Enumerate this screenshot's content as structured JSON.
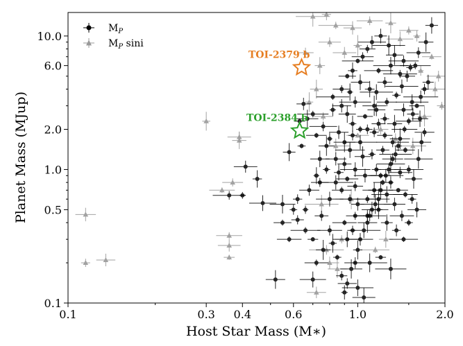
{
  "chart_data": {
    "type": "scatter",
    "title": "",
    "xlabel": "Host Star Mass (M∗)",
    "ylabel": "Planet Mass (MJup)",
    "xscale": "log",
    "yscale": "log",
    "xlim": [
      0.1,
      2.0
    ],
    "ylim": [
      0.1,
      15
    ],
    "x_ticks": [
      0.1,
      0.3,
      0.4,
      0.6,
      1.0,
      2.0
    ],
    "x_tick_labels": [
      "0.1",
      "0.3",
      "0.4",
      "0.6",
      "1.0",
      "2.0"
    ],
    "y_ticks": [
      0.1,
      0.5,
      1.0,
      2.0,
      6.0,
      10.0
    ],
    "y_tick_labels": [
      "0.1",
      "0.5",
      "1.0",
      "2.0",
      "6.0",
      "10.0"
    ],
    "grid": false,
    "legend_position": "top-left",
    "legend": [
      {
        "label": "M",
        "sub": "P",
        "suffix": "",
        "marker": "circle",
        "color": "#000000"
      },
      {
        "label": "M",
        "sub": "P",
        "suffix": " sini",
        "marker": "triangle",
        "color": "#999999"
      }
    ],
    "series": [
      {
        "name": "MP",
        "marker": "circle",
        "color": "#000000",
        "points": [
          [
            0.52,
            0.15
          ],
          [
            0.41,
            1.05
          ],
          [
            0.45,
            0.85
          ],
          [
            0.36,
            0.64
          ],
          [
            0.4,
            0.64
          ],
          [
            0.47,
            0.56
          ],
          [
            0.55,
            0.55
          ],
          [
            0.58,
            1.35
          ],
          [
            0.63,
            2.3
          ],
          [
            0.64,
            1.5
          ],
          [
            0.67,
            2.4
          ],
          [
            0.7,
            2.6
          ],
          [
            0.72,
            1.8
          ],
          [
            0.65,
            3.1
          ],
          [
            0.6,
            0.5
          ],
          [
            0.62,
            0.42
          ],
          [
            0.66,
            0.35
          ],
          [
            0.7,
            0.3
          ],
          [
            0.58,
            0.3
          ],
          [
            0.55,
            0.4
          ],
          [
            0.68,
            0.7
          ],
          [
            0.72,
            0.9
          ],
          [
            0.74,
            1.2
          ],
          [
            0.78,
            1.5
          ],
          [
            0.8,
            0.6
          ],
          [
            0.75,
            0.45
          ],
          [
            0.82,
            0.28
          ],
          [
            0.85,
            0.22
          ],
          [
            0.88,
            0.16
          ],
          [
            0.9,
            0.12
          ],
          [
            0.92,
            0.14
          ],
          [
            0.95,
            0.18
          ],
          [
            0.98,
            0.2
          ],
          [
            1.0,
            0.25
          ],
          [
            1.02,
            0.3
          ],
          [
            1.05,
            0.35
          ],
          [
            1.08,
            0.4
          ],
          [
            1.1,
            0.45
          ],
          [
            1.12,
            0.5
          ],
          [
            1.15,
            0.55
          ],
          [
            1.18,
            0.6
          ],
          [
            1.2,
            0.7
          ],
          [
            1.22,
            0.8
          ],
          [
            1.25,
            0.9
          ],
          [
            1.28,
            1.0
          ],
          [
            1.3,
            1.1
          ],
          [
            1.32,
            1.2
          ],
          [
            1.35,
            1.3
          ],
          [
            1.38,
            1.5
          ],
          [
            1.4,
            1.7
          ],
          [
            1.45,
            2.0
          ],
          [
            1.5,
            2.3
          ],
          [
            1.55,
            2.6
          ],
          [
            1.6,
            3.0
          ],
          [
            1.65,
            3.5
          ],
          [
            1.7,
            4.0
          ],
          [
            1.75,
            4.5
          ],
          [
            1.8,
            12.0
          ],
          [
            1.72,
            9.0
          ],
          [
            1.62,
            7.5
          ],
          [
            1.58,
            6.0
          ],
          [
            1.48,
            5.0
          ],
          [
            1.42,
            4.2
          ],
          [
            1.36,
            3.6
          ],
          [
            1.26,
            3.2
          ],
          [
            1.16,
            2.8
          ],
          [
            1.06,
            2.5
          ],
          [
            0.96,
            2.2
          ],
          [
            0.86,
            1.9
          ],
          [
            0.82,
            3.5
          ],
          [
            0.88,
            4.0
          ],
          [
            0.92,
            5.0
          ],
          [
            0.96,
            5.5
          ],
          [
            1.0,
            6.5
          ],
          [
            1.04,
            7.0
          ],
          [
            1.08,
            8.0
          ],
          [
            1.12,
            9.0
          ],
          [
            1.2,
            10.0
          ],
          [
            1.28,
            8.5
          ],
          [
            1.34,
            7.2
          ],
          [
            1.44,
            6.5
          ],
          [
            1.52,
            5.8
          ],
          [
            1.1,
            4.0
          ],
          [
            1.14,
            3.0
          ],
          [
            1.18,
            2.2
          ],
          [
            1.24,
            1.8
          ],
          [
            1.02,
            1.6
          ],
          [
            0.94,
            1.4
          ],
          [
            0.9,
            1.1
          ],
          [
            0.86,
            0.95
          ],
          [
            0.84,
            0.8
          ],
          [
            0.98,
            0.75
          ],
          [
            1.06,
            0.9
          ],
          [
            1.16,
            1.0
          ],
          [
            1.26,
            0.65
          ],
          [
            1.34,
            0.55
          ],
          [
            1.42,
            0.45
          ],
          [
            1.5,
            0.4
          ],
          [
            1.56,
            0.85
          ],
          [
            1.62,
            1.2
          ],
          [
            1.66,
            1.6
          ],
          [
            1.46,
            1.4
          ],
          [
            1.32,
            1.6
          ],
          [
            1.22,
            1.4
          ],
          [
            1.12,
            1.3
          ],
          [
            1.04,
            1.25
          ],
          [
            0.98,
            1.0
          ],
          [
            0.92,
            0.85
          ],
          [
            0.88,
            0.7
          ],
          [
            0.94,
            0.6
          ],
          [
            1.0,
            0.55
          ],
          [
            1.08,
            0.6
          ],
          [
            1.14,
            0.7
          ],
          [
            1.2,
            0.9
          ],
          [
            1.3,
            0.8
          ],
          [
            1.38,
            0.7
          ],
          [
            1.46,
            0.65
          ],
          [
            1.54,
            0.6
          ],
          [
            1.6,
            0.5
          ],
          [
            1.1,
            0.2
          ],
          [
            1.2,
            0.22
          ],
          [
            1.3,
            0.18
          ],
          [
            1.0,
            0.13
          ],
          [
            1.05,
            0.11
          ],
          [
            0.96,
            0.35
          ],
          [
            0.9,
            0.4
          ],
          [
            0.8,
            0.35
          ],
          [
            0.76,
            0.25
          ],
          [
            0.72,
            0.2
          ],
          [
            0.7,
            0.15
          ],
          [
            0.66,
            0.5
          ],
          [
            0.62,
            0.6
          ],
          [
            0.78,
            1.0
          ],
          [
            0.84,
            1.2
          ],
          [
            0.9,
            1.6
          ],
          [
            0.96,
            1.8
          ],
          [
            1.02,
            2.0
          ],
          [
            1.08,
            2.0
          ],
          [
            1.14,
            1.9
          ],
          [
            1.24,
            2.4
          ],
          [
            1.34,
            2.2
          ],
          [
            1.44,
            2.8
          ],
          [
            1.54,
            3.2
          ],
          [
            1.64,
            2.4
          ],
          [
            1.7,
            1.9
          ],
          [
            1.5,
            1.0
          ],
          [
            1.4,
            0.95
          ],
          [
            1.18,
            0.5
          ],
          [
            1.08,
            0.45
          ],
          [
            0.98,
            0.45
          ],
          [
            0.92,
            0.3
          ],
          [
            1.26,
            0.4
          ],
          [
            1.36,
            0.35
          ],
          [
            1.44,
            0.3
          ],
          [
            0.74,
            0.8
          ],
          [
            0.8,
            1.7
          ],
          [
            0.76,
            2.1
          ],
          [
            0.82,
            2.8
          ],
          [
            0.88,
            3.0
          ],
          [
            0.94,
            3.8
          ],
          [
            1.02,
            4.5
          ],
          [
            1.18,
            5.5
          ],
          [
            1.3,
            6.0
          ],
          [
            1.4,
            5.2
          ],
          [
            1.24,
            4.5
          ],
          [
            1.16,
            3.8
          ],
          [
            0.98,
            3.2
          ],
          [
            0.92,
            2.6
          ]
        ]
      },
      {
        "name": "MP sini",
        "marker": "triangle",
        "color": "#999999",
        "points": [
          [
            0.115,
            0.46
          ],
          [
            0.115,
            0.2
          ],
          [
            0.135,
            0.21
          ],
          [
            0.3,
            2.3
          ],
          [
            0.39,
            1.75
          ],
          [
            0.39,
            1.65
          ],
          [
            0.34,
            0.7
          ],
          [
            0.37,
            0.8
          ],
          [
            0.36,
            0.32
          ],
          [
            0.36,
            0.27
          ],
          [
            0.36,
            0.22
          ],
          [
            0.7,
            14.0
          ],
          [
            0.78,
            14.5
          ],
          [
            0.84,
            12.0
          ],
          [
            0.96,
            11.5
          ],
          [
            1.1,
            13.0
          ],
          [
            1.3,
            12.5
          ],
          [
            1.5,
            11.0
          ],
          [
            0.8,
            9.0
          ],
          [
            0.74,
            6.0
          ],
          [
            0.66,
            7.5
          ],
          [
            0.68,
            3.2
          ],
          [
            0.72,
            4.0
          ],
          [
            0.76,
            2.5
          ],
          [
            1.9,
            5.0
          ],
          [
            1.85,
            4.0
          ],
          [
            1.95,
            3.0
          ],
          [
            1.8,
            7.0
          ],
          [
            1.6,
            10.0
          ],
          [
            1.4,
            9.5
          ],
          [
            0.78,
            0.25
          ],
          [
            0.8,
            0.2
          ],
          [
            0.85,
            0.18
          ],
          [
            0.72,
            0.12
          ],
          [
            0.88,
            0.3
          ],
          [
            1.15,
            0.25
          ],
          [
            1.25,
            0.3
          ],
          [
            0.95,
            0.6
          ],
          [
            0.75,
            0.55
          ],
          [
            0.84,
            1.5
          ],
          [
            1.0,
            1.8
          ],
          [
            1.2,
            2.0
          ],
          [
            1.35,
            1.7
          ],
          [
            1.55,
            1.5
          ],
          [
            1.7,
            2.5
          ],
          [
            1.65,
            5.5
          ],
          [
            0.9,
            7.5
          ],
          [
            1.0,
            8.5
          ]
        ]
      }
    ],
    "highlights": [
      {
        "name": "TOI-2379 b",
        "x": 0.64,
        "y": 5.8,
        "color": "#E67E22"
      },
      {
        "name": "TOI-2384 b",
        "x": 0.63,
        "y": 1.95,
        "color": "#2CA02C"
      }
    ]
  }
}
